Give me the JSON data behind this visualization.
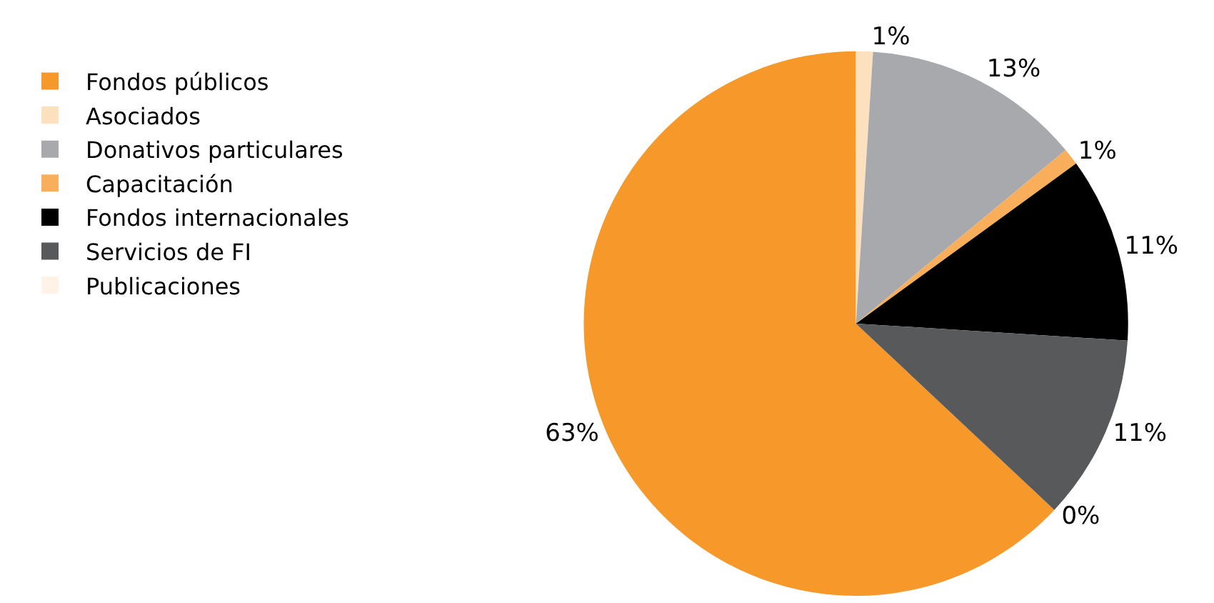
{
  "chart_data": {
    "type": "pie",
    "categories": [
      "Fondos públicos",
      "Asociados",
      "Donativos particulares",
      "Capacitación",
      "Fondos internacionales",
      "Servicios de FI",
      "Publicaciones"
    ],
    "values": [
      63,
      1,
      13,
      1,
      11,
      11,
      0
    ],
    "value_labels": [
      "63%",
      "1%",
      "13%",
      "1%",
      "11%",
      "11%",
      "0%"
    ],
    "colors": [
      "#f7992a",
      "#fde0be",
      "#a7a9ac",
      "#f9ae5b",
      "#000000",
      "#58595b",
      "#fef3e6"
    ],
    "legend": "top left"
  }
}
